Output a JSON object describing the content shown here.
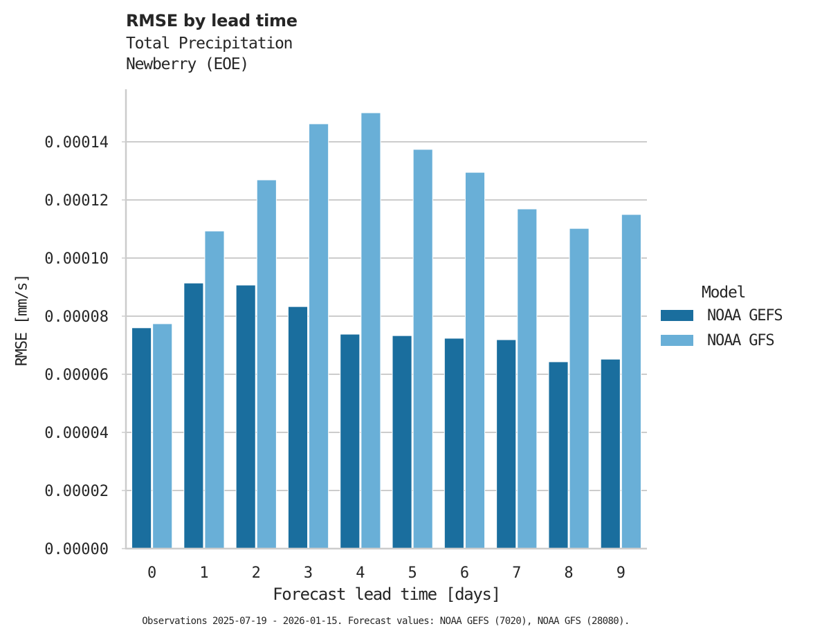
{
  "title": "RMSE by lead time",
  "subtitle_line1": "Total Precipitation",
  "subtitle_line2": "Newberry (EOE)",
  "footnote": "Observations 2025-07-19 - 2026-01-15. Forecast values: NOAA GEFS (7020), NOAA GFS (28080).",
  "legend": {
    "title": "Model",
    "items": [
      {
        "label": "NOAA GEFS",
        "color": "#1a6e9e"
      },
      {
        "label": "NOAA GFS",
        "color": "#69afd7"
      }
    ]
  },
  "chart_data": {
    "type": "bar",
    "title": "RMSE by lead time",
    "subtitle": "Total Precipitation / Newberry (EOE)",
    "xlabel": "Forecast lead time [days]",
    "ylabel": "RMSE [mm/s]",
    "categories": [
      "0",
      "1",
      "2",
      "3",
      "4",
      "5",
      "6",
      "7",
      "8",
      "9"
    ],
    "series": [
      {
        "name": "NOAA GEFS",
        "color": "#1a6e9e",
        "values": [
          7.6e-05,
          9.14e-05,
          9.07e-05,
          8.33e-05,
          7.38e-05,
          7.33e-05,
          7.24e-05,
          7.19e-05,
          6.43e-05,
          6.52e-05
        ]
      },
      {
        "name": "NOAA GFS",
        "color": "#69afd7",
        "values": [
          7.74e-05,
          0.0001093,
          0.0001269,
          0.0001462,
          0.00015,
          0.0001374,
          0.0001295,
          0.0001169,
          0.0001102,
          0.000115
        ]
      }
    ],
    "yticks": [
      "0.00000",
      "0.00002",
      "0.00004",
      "0.00006",
      "0.00008",
      "0.00010",
      "0.00012",
      "0.00014"
    ],
    "ylim": [
      0,
      0.000158
    ],
    "grid": "y",
    "legend_position": "right"
  }
}
